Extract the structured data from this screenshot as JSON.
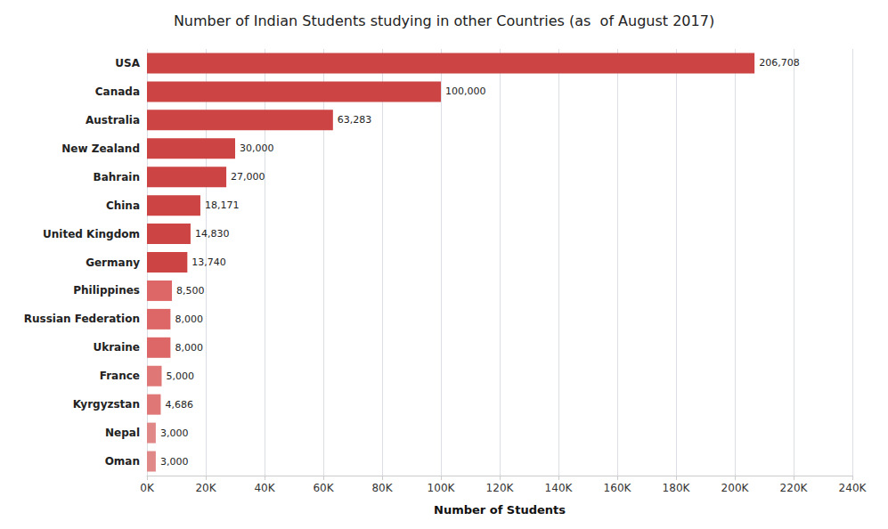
{
  "chart_data": {
    "type": "bar",
    "orientation": "horizontal",
    "title": "Number of Indian Students studying in other Countries (as  of August 2017)",
    "xlabel": "Number of Students",
    "categories": [
      "USA",
      "Canada",
      "Australia",
      "New Zealand",
      "Bahrain",
      "China",
      "United Kingdom",
      "Germany",
      "Philippines",
      "Russian Federation",
      "Ukraine",
      "France",
      "Kyrgyzstan",
      "Nepal",
      "Oman"
    ],
    "values": [
      206708,
      100000,
      63283,
      30000,
      27000,
      18171,
      14830,
      13740,
      8500,
      8000,
      8000,
      5000,
      4686,
      3000,
      3000
    ],
    "value_labels": [
      "206,708",
      "100,000",
      "63,283",
      "30,000",
      "27,000",
      "18,171",
      "14,830",
      "13,740",
      "8,500",
      "8,000",
      "8,000",
      "5,000",
      "4,686",
      "3,000",
      "3,000"
    ],
    "data_labels": true,
    "colors": [
      "#cc4444",
      "#cc4444",
      "#cc4444",
      "#cc4444",
      "#cc4444",
      "#cc4444",
      "#cc4444",
      "#cc4444",
      "#dd6666",
      "#dd6666",
      "#dd6666",
      "#e07777",
      "#e07777",
      "#e08888",
      "#e08888"
    ],
    "xlim": [
      0,
      240000
    ],
    "xticks": [
      {
        "value": 0,
        "label": "0K"
      },
      {
        "value": 20000,
        "label": "20K"
      },
      {
        "value": 40000,
        "label": "40K"
      },
      {
        "value": 60000,
        "label": "60K"
      },
      {
        "value": 80000,
        "label": "80K"
      },
      {
        "value": 100000,
        "label": "100K"
      },
      {
        "value": 120000,
        "label": "120K"
      },
      {
        "value": 140000,
        "label": "140K"
      },
      {
        "value": 160000,
        "label": "160K"
      },
      {
        "value": 180000,
        "label": "180K"
      },
      {
        "value": 200000,
        "label": "200K"
      },
      {
        "value": 220000,
        "label": "220K"
      },
      {
        "value": 240000,
        "label": "240K"
      }
    ],
    "grid": true
  }
}
